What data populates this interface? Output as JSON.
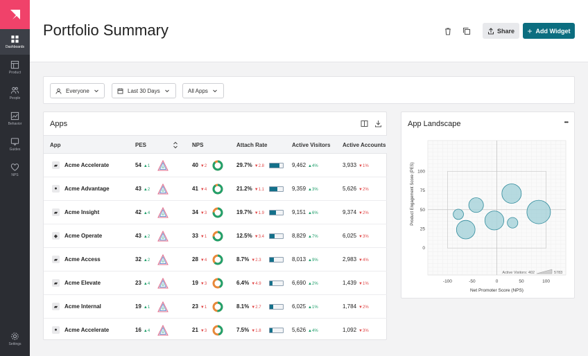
{
  "sidebar": {
    "items": [
      {
        "label": "Dashboards",
        "icon": "dashboard-icon",
        "active": true
      },
      {
        "label": "Product",
        "icon": "product-icon"
      },
      {
        "label": "People",
        "icon": "people-icon"
      },
      {
        "label": "Behavior",
        "icon": "behavior-icon"
      },
      {
        "label": "Guides",
        "icon": "guides-icon"
      },
      {
        "label": "NPS",
        "icon": "heart-icon"
      }
    ],
    "settings_label": "Settings"
  },
  "header": {
    "title": "Portfolio Summary",
    "share_label": "Share",
    "add_widget_label": "Add Widget"
  },
  "filters": {
    "segment": "Everyone",
    "date_range": "Last 30 Days",
    "apps": "All Apps"
  },
  "apps_panel": {
    "title": "Apps",
    "columns": [
      "App",
      "PES",
      "NPS",
      "Attach Rate",
      "Active Visitors",
      "Active Accounts"
    ],
    "rows": [
      {
        "app": "Acme Accelerate",
        "icon": "web-app-icon",
        "pes": "54",
        "pes_delta": "1",
        "pes_dir": "up",
        "nps": "40",
        "nps_delta": "2",
        "nps_dir": "down",
        "attach": "29.7%",
        "attach_delta": "2.8",
        "attach_dir": "down",
        "attach_level": 0.75,
        "visitors": "9,462",
        "visitors_delta": "4%",
        "visitors_dir": "up",
        "accounts": "3,933",
        "accounts_delta": "1%",
        "accounts_dir": "down"
      },
      {
        "app": "Acme Advantage",
        "icon": "apple-icon",
        "pes": "43",
        "pes_delta": "2",
        "pes_dir": "up",
        "nps": "41",
        "nps_delta": "4",
        "nps_dir": "down",
        "attach": "21.2%",
        "attach_delta": "1.1",
        "attach_dir": "down",
        "attach_level": 0.6,
        "visitors": "9,359",
        "visitors_delta": "3%",
        "visitors_dir": "up",
        "accounts": "5,626",
        "accounts_delta": "2%",
        "accounts_dir": "down"
      },
      {
        "app": "Acme Insight",
        "icon": "web-app-icon",
        "pes": "42",
        "pes_delta": "4",
        "pes_dir": "up",
        "nps": "34",
        "nps_delta": "3",
        "nps_dir": "down",
        "attach": "19.7%",
        "attach_delta": "1.9",
        "attach_dir": "down",
        "attach_level": 0.45,
        "visitors": "9,151",
        "visitors_delta": "6%",
        "visitors_dir": "up",
        "accounts": "9,374",
        "accounts_delta": "2%",
        "accounts_dir": "down"
      },
      {
        "app": "Acme Operate",
        "icon": "android-icon",
        "pes": "43",
        "pes_delta": "2",
        "pes_dir": "up",
        "nps": "33",
        "nps_delta": "1",
        "nps_dir": "down",
        "attach": "12.5%",
        "attach_delta": "3.4",
        "attach_dir": "down",
        "attach_level": 0.35,
        "visitors": "8,829",
        "visitors_delta": "7%",
        "visitors_dir": "up",
        "accounts": "6,025",
        "accounts_delta": "3%",
        "accounts_dir": "down"
      },
      {
        "app": "Acme Access",
        "icon": "web-app-icon",
        "pes": "32",
        "pes_delta": "2",
        "pes_dir": "up",
        "nps": "28",
        "nps_delta": "4",
        "nps_dir": "down",
        "attach": "8.7%",
        "attach_delta": "2.3",
        "attach_dir": "down",
        "attach_level": 0.3,
        "visitors": "8,013",
        "visitors_delta": "9%",
        "visitors_dir": "up",
        "accounts": "2,983",
        "accounts_delta": "4%",
        "accounts_dir": "down"
      },
      {
        "app": "Acme Elevate",
        "icon": "web-app-icon",
        "pes": "23",
        "pes_delta": "4",
        "pes_dir": "up",
        "nps": "19",
        "nps_delta": "3",
        "nps_dir": "down",
        "attach": "6.4%",
        "attach_delta": "4.9",
        "attach_dir": "down",
        "attach_level": 0.2,
        "visitors": "6,690",
        "visitors_delta": "2%",
        "visitors_dir": "up",
        "accounts": "1,439",
        "accounts_delta": "1%",
        "accounts_dir": "down"
      },
      {
        "app": "Acme Internal",
        "icon": "web-app-icon",
        "pes": "19",
        "pes_delta": "1",
        "pes_dir": "up",
        "nps": "23",
        "nps_delta": "1",
        "nps_dir": "down",
        "attach": "8.1%",
        "attach_delta": "2.7",
        "attach_dir": "down",
        "attach_level": 0.25,
        "visitors": "6,025",
        "visitors_delta": "1%",
        "visitors_dir": "up",
        "accounts": "1,784",
        "accounts_delta": "2%",
        "accounts_dir": "down"
      },
      {
        "app": "Acme Accelerate",
        "icon": "apple-icon",
        "pes": "16",
        "pes_delta": "4",
        "pes_dir": "up",
        "nps": "21",
        "nps_delta": "3",
        "nps_dir": "down",
        "attach": "7.5%",
        "attach_delta": "1.8",
        "attach_dir": "down",
        "attach_level": 0.22,
        "visitors": "5,626",
        "visitors_delta": "4%",
        "visitors_dir": "up",
        "accounts": "1,092",
        "accounts_delta": "3%",
        "accounts_dir": "down"
      }
    ]
  },
  "landscape_panel": {
    "title": "App Landscape",
    "more_label": "•••"
  },
  "chart_data": {
    "type": "scatter",
    "title": "",
    "xlabel": "Net Promoter Score (NPS)",
    "ylabel": "Product Engagement Score (PES)",
    "xlim": [
      -140,
      140
    ],
    "ylim": [
      -35,
      140
    ],
    "xticks": [
      -100,
      -50,
      0,
      50,
      100
    ],
    "yticks": [
      0,
      25,
      50,
      75,
      100
    ],
    "grid": true,
    "size_legend": {
      "label": "Active Visitors: 402",
      "max_label": "5783"
    },
    "points": [
      {
        "x": -78,
        "y": 44,
        "size": 402
      },
      {
        "x": -63,
        "y": 24,
        "size": 3000
      },
      {
        "x": -42,
        "y": 56,
        "size": 1500
      },
      {
        "x": -5,
        "y": 36,
        "size": 3200
      },
      {
        "x": 30,
        "y": 71,
        "size": 3400
      },
      {
        "x": 32,
        "y": 33,
        "size": 450
      },
      {
        "x": 85,
        "y": 47,
        "size": 5783
      }
    ],
    "bubble_color": "#a9d4db",
    "bubble_stroke": "#2f8a9b"
  },
  "colors": {
    "accent": "#0c6e80",
    "logo": "#f0426a",
    "up": "#1e9e6a",
    "down": "#e04848"
  }
}
